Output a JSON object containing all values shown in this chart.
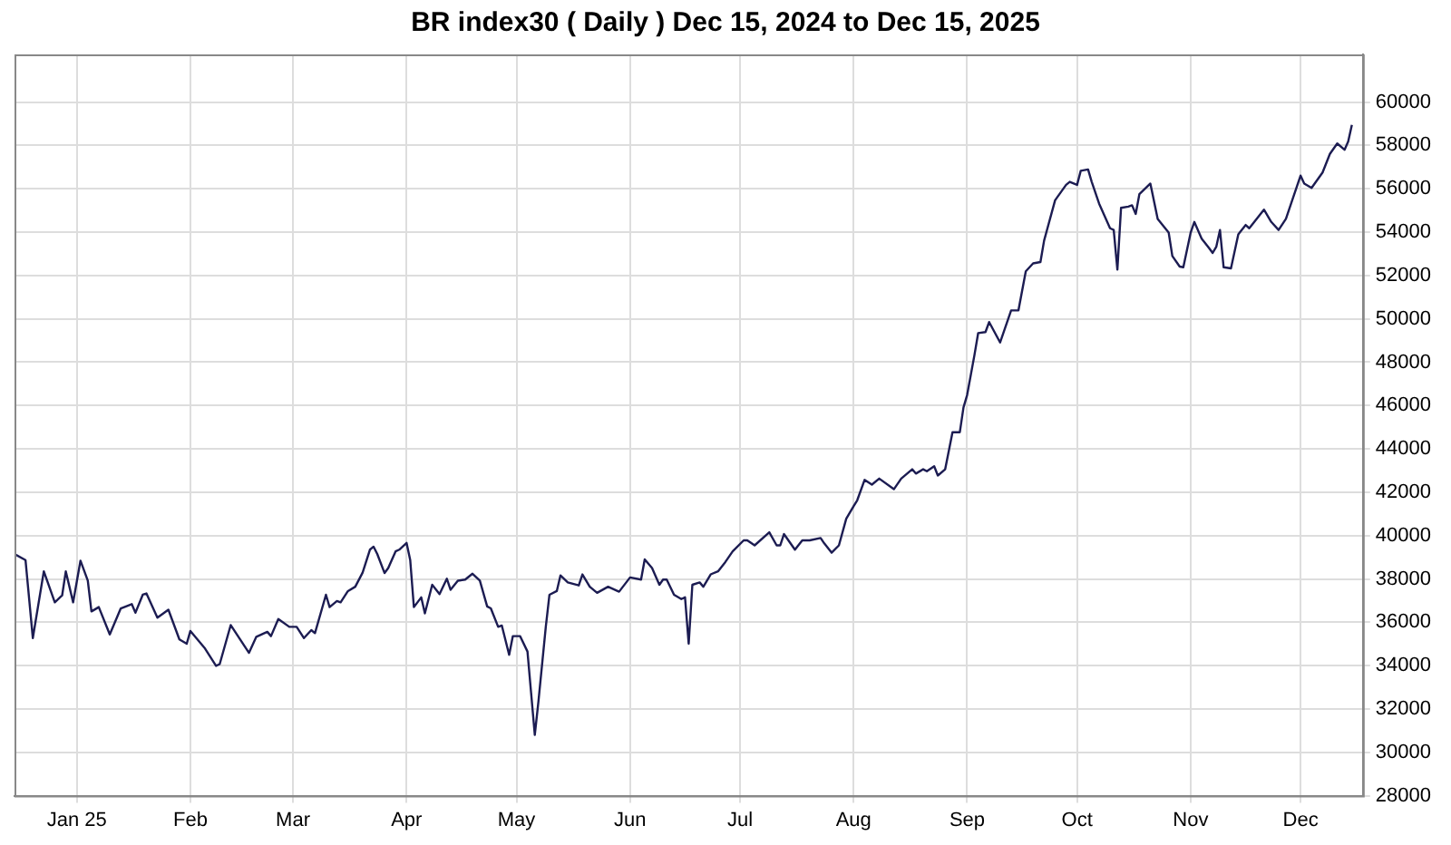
{
  "chart_data": {
    "type": "line",
    "title": "BR index30 ( Daily ) Dec 15, 2024 to Dec 15, 2025",
    "x": [
      "2024-12-15",
      "2024-12-18",
      "2024-12-20",
      "2024-12-23",
      "2024-12-26",
      "2024-12-28",
      "2024-12-29",
      "2024-12-31",
      "2025-01-02",
      "2025-01-04",
      "2025-01-05",
      "2025-01-07",
      "2025-01-10",
      "2025-01-13",
      "2025-01-16",
      "2025-01-17",
      "2025-01-19",
      "2025-01-20",
      "2025-01-23",
      "2025-01-26",
      "2025-01-29",
      "2025-01-31",
      "2025-02-01",
      "2025-02-05",
      "2025-02-08",
      "2025-02-09",
      "2025-02-12",
      "2025-02-17",
      "2025-02-19",
      "2025-02-22",
      "2025-02-23",
      "2025-02-25",
      "2025-02-28",
      "2025-03-02",
      "2025-03-04",
      "2025-03-06",
      "2025-03-07",
      "2025-03-10",
      "2025-03-11",
      "2025-03-13",
      "2025-03-14",
      "2025-03-16",
      "2025-03-18",
      "2025-03-20",
      "2025-03-22",
      "2025-03-23",
      "2025-03-24",
      "2025-03-26",
      "2025-03-27",
      "2025-03-29",
      "2025-03-30",
      "2025-04-01",
      "2025-04-02",
      "2025-04-03",
      "2025-04-05",
      "2025-04-06",
      "2025-04-08",
      "2025-04-10",
      "2025-04-12",
      "2025-04-13",
      "2025-04-15",
      "2025-04-17",
      "2025-04-19",
      "2025-04-21",
      "2025-04-23",
      "2025-04-24",
      "2025-04-26",
      "2025-04-27",
      "2025-04-29",
      "2025-04-30",
      "2025-05-02",
      "2025-05-04",
      "2025-05-06",
      "2025-05-07",
      "2025-05-09",
      "2025-05-10",
      "2025-05-12",
      "2025-05-13",
      "2025-05-15",
      "2025-05-18",
      "2025-05-19",
      "2025-05-21",
      "2025-05-23",
      "2025-05-26",
      "2025-05-29",
      "2025-06-01",
      "2025-06-04",
      "2025-06-05",
      "2025-06-07",
      "2025-06-09",
      "2025-06-10",
      "2025-06-11",
      "2025-06-13",
      "2025-06-15",
      "2025-06-16",
      "2025-06-17",
      "2025-06-18",
      "2025-06-20",
      "2025-06-21",
      "2025-06-23",
      "2025-06-25",
      "2025-06-27",
      "2025-06-29",
      "2025-07-02",
      "2025-07-03",
      "2025-07-05",
      "2025-07-09",
      "2025-07-11",
      "2025-07-12",
      "2025-07-13",
      "2025-07-16",
      "2025-07-18",
      "2025-07-20",
      "2025-07-23",
      "2025-07-24",
      "2025-07-26",
      "2025-07-28",
      "2025-07-30",
      "2025-08-01",
      "2025-08-02",
      "2025-08-04",
      "2025-08-06",
      "2025-08-08",
      "2025-08-12",
      "2025-08-14",
      "2025-08-17",
      "2025-08-18",
      "2025-08-20",
      "2025-08-21",
      "2025-08-23",
      "2025-08-24",
      "2025-08-26",
      "2025-08-28",
      "2025-08-30",
      "2025-08-31",
      "2025-09-01",
      "2025-09-03",
      "2025-09-04",
      "2025-09-06",
      "2025-09-07",
      "2025-09-10",
      "2025-09-13",
      "2025-09-15",
      "2025-09-17",
      "2025-09-19",
      "2025-09-21",
      "2025-09-22",
      "2025-09-25",
      "2025-09-28",
      "2025-09-29",
      "2025-10-01",
      "2025-10-02",
      "2025-10-04",
      "2025-10-05",
      "2025-10-07",
      "2025-10-10",
      "2025-10-11",
      "2025-10-12",
      "2025-10-13",
      "2025-10-15",
      "2025-10-16",
      "2025-10-17",
      "2025-10-18",
      "2025-10-21",
      "2025-10-23",
      "2025-10-26",
      "2025-10-27",
      "2025-10-29",
      "2025-10-30",
      "2025-11-01",
      "2025-11-02",
      "2025-11-04",
      "2025-11-06",
      "2025-11-07",
      "2025-11-08",
      "2025-11-09",
      "2025-11-10",
      "2025-11-12",
      "2025-11-14",
      "2025-11-16",
      "2025-11-17",
      "2025-11-21",
      "2025-11-23",
      "2025-11-25",
      "2025-11-27",
      "2025-12-01",
      "2025-12-02",
      "2025-12-04",
      "2025-12-07",
      "2025-12-09",
      "2025-12-11",
      "2025-12-13",
      "2025-12-14",
      "2025-12-15"
    ],
    "series": [
      {
        "color": "#1c1c52",
        "values": [
          39150,
          38870,
          35270,
          38350,
          36920,
          37240,
          38350,
          36920,
          38840,
          37920,
          36500,
          36700,
          35440,
          36640,
          36840,
          36440,
          37270,
          37330,
          36210,
          36580,
          35210,
          35010,
          35600,
          34790,
          33990,
          34070,
          35870,
          34590,
          35330,
          35560,
          35360,
          36150,
          35790,
          35790,
          35270,
          35640,
          35500,
          37270,
          36700,
          36980,
          36920,
          37440,
          37640,
          38290,
          39350,
          39490,
          39150,
          38270,
          38500,
          39270,
          39350,
          39660,
          38870,
          36700,
          37150,
          36410,
          37730,
          37300,
          38010,
          37500,
          37920,
          37970,
          38240,
          37920,
          36730,
          36640,
          35790,
          35850,
          34500,
          35360,
          35360,
          34650,
          30800,
          32360,
          35790,
          37270,
          37440,
          38160,
          37840,
          37700,
          38210,
          37640,
          37360,
          37640,
          37410,
          38070,
          37970,
          38900,
          38500,
          37730,
          37970,
          37970,
          37270,
          37070,
          37150,
          35010,
          37730,
          37840,
          37640,
          38210,
          38350,
          38780,
          39270,
          39780,
          39780,
          39550,
          40150,
          39550,
          39550,
          40070,
          39350,
          39780,
          39780,
          39890,
          39640,
          39210,
          39550,
          40780,
          41350,
          41630,
          42570,
          42350,
          42630,
          42140,
          42630,
          43060,
          42860,
          43060,
          42970,
          43200,
          42770,
          43060,
          44770,
          44770,
          45910,
          46490,
          48340,
          49340,
          49390,
          49850,
          48910,
          50390,
          50390,
          52190,
          52560,
          52620,
          53610,
          55470,
          56180,
          56320,
          56180,
          56830,
          56890,
          56320,
          55320,
          54180,
          54100,
          52270,
          55120,
          55180,
          55240,
          54840,
          55750,
          56240,
          54610,
          53980,
          52900,
          52410,
          52380,
          53980,
          54470,
          53700,
          53270,
          53040,
          53330,
          54100,
          52380,
          52330,
          53900,
          54330,
          54180,
          55040,
          54470,
          54100,
          54610,
          56610,
          56240,
          56040,
          56750,
          57610,
          58090,
          57800,
          58180,
          58950
        ]
      }
    ],
    "xlim": [
      "2024-12-15",
      "2025-12-18"
    ],
    "xticks": [
      {
        "value": "2025-01-01",
        "label": "Jan 25"
      },
      {
        "value": "2025-02-01",
        "label": "Feb"
      },
      {
        "value": "2025-03-01",
        "label": "Mar"
      },
      {
        "value": "2025-04-01",
        "label": "Apr"
      },
      {
        "value": "2025-05-01",
        "label": "May"
      },
      {
        "value": "2025-06-01",
        "label": "Jun"
      },
      {
        "value": "2025-07-01",
        "label": "Jul"
      },
      {
        "value": "2025-08-01",
        "label": "Aug"
      },
      {
        "value": "2025-09-01",
        "label": "Sep"
      },
      {
        "value": "2025-10-01",
        "label": "Oct"
      },
      {
        "value": "2025-11-01",
        "label": "Nov"
      },
      {
        "value": "2025-12-01",
        "label": "Dec"
      }
    ],
    "ylim": [
      28000,
      62200
    ],
    "yticks": [
      28000,
      30000,
      32000,
      34000,
      36000,
      38000,
      40000,
      42000,
      44000,
      46000,
      48000,
      50000,
      52000,
      54000,
      56000,
      58000,
      60000
    ],
    "grid": true,
    "legend": false,
    "marker": "none",
    "line_style": "solid"
  }
}
